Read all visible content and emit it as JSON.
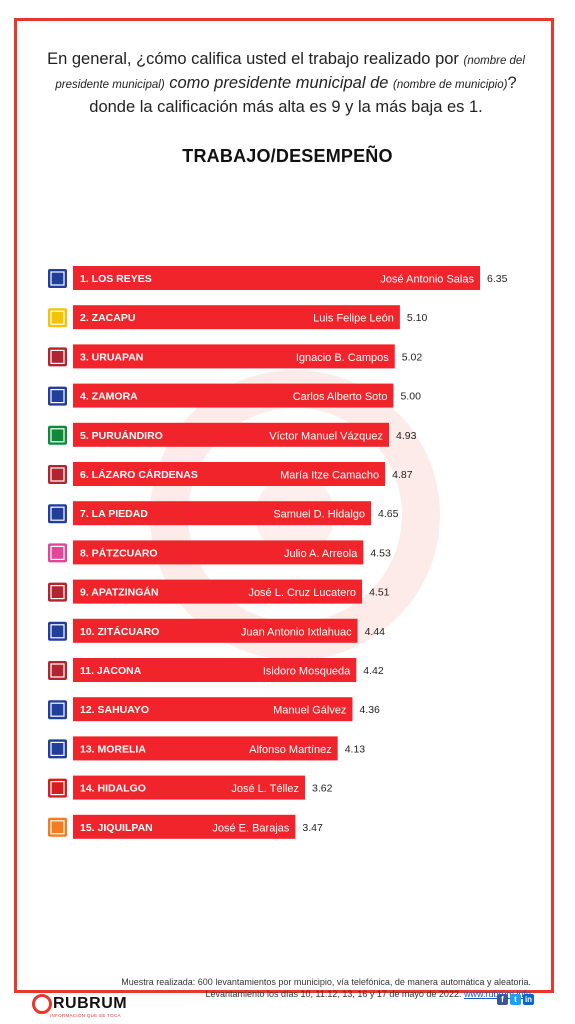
{
  "question": {
    "part1": "En general, ¿cómo califica usted el trabajo realizado por ",
    "small1": "(nombre del presidente municipal)",
    "part2": " como presidente municipal de ",
    "small2": "(nombre de municipio)",
    "part3": "? donde la calificación más alta es 9 y la más baja es 1."
  },
  "title": "TRABAJO/DESEMPEÑO",
  "chart_data": {
    "type": "bar",
    "orientation": "horizontal",
    "categories": [
      "1. LOS REYES",
      "2. ZACAPU",
      "3. URUAPAN",
      "4. ZAMORA",
      "5. PURUÁNDIRO",
      "6. LÁZARO CÁRDENAS",
      "7. LA PIEDAD",
      "8. PÁTZCUARO",
      "9. APATZINGÁN",
      "10. ZITÁCUARO",
      "11. JACONA",
      "12. SAHUAYO",
      "13. MORELIA",
      "14. HIDALGO",
      "15. JIQUILPAN"
    ],
    "mayors": [
      "José Antonio Salas",
      "Luis Felipe León",
      "Ignacio B. Campos",
      "Carlos Alberto Soto",
      "Víctor Manuel Vázquez",
      "María Itze Camacho",
      "Samuel D. Hidalgo",
      "Julio A. Arreola",
      "José L. Cruz Lucatero",
      "Juan Antonio Ixtlahuac",
      "Isidoro Mosqueda",
      "Manuel Gálvez",
      "Alfonso Martínez",
      "José L. Téllez",
      "José E. Barajas"
    ],
    "value_labels": [
      "6.35",
      "5.10",
      "5.02",
      "5.00",
      "4.93",
      "4.87",
      "4.65",
      "4.53",
      "4.51",
      "4.44",
      "4.42",
      "4.36",
      "4.13",
      "3.62",
      "3.47"
    ],
    "values": [
      6.35,
      5.1,
      5.02,
      5.0,
      4.93,
      4.87,
      4.65,
      4.53,
      4.51,
      4.44,
      4.42,
      4.36,
      4.13,
      3.62,
      3.47
    ],
    "parties": [
      "PAN",
      "PRD",
      "MORENA",
      "PAN",
      "PRI",
      "MORENA",
      "PAN",
      "FXM",
      "MORENA",
      "PAN",
      "MORENA",
      "PAN",
      "PAN",
      "PT",
      "MC"
    ],
    "party_colors": {
      "PAN": "#1f3f9b",
      "PRD": "#f3c400",
      "MORENA": "#b0252f",
      "PRI": "#0f8a3a",
      "FXM": "#e0479a",
      "PT": "#d71d1d",
      "MC": "#f47c20"
    },
    "bar_color": "#f0242a",
    "xlim": [
      0,
      9
    ]
  },
  "footer": {
    "line1": "Muestra realizada: 600 levantamientos por municipio, vía telefónica, de manera automática y aleatoria.",
    "line2": "Levantamiento los días 10, 11.12, 13, 16 y 17 de mayo  de 2022.",
    "link": "www.rubrum.info"
  },
  "brand": {
    "name": "RUBRUM",
    "tagline": "INFORMACIÓN QUE SE TOCA"
  },
  "social_icons": [
    "facebook-icon",
    "twitter-icon",
    "linkedin-icon"
  ]
}
